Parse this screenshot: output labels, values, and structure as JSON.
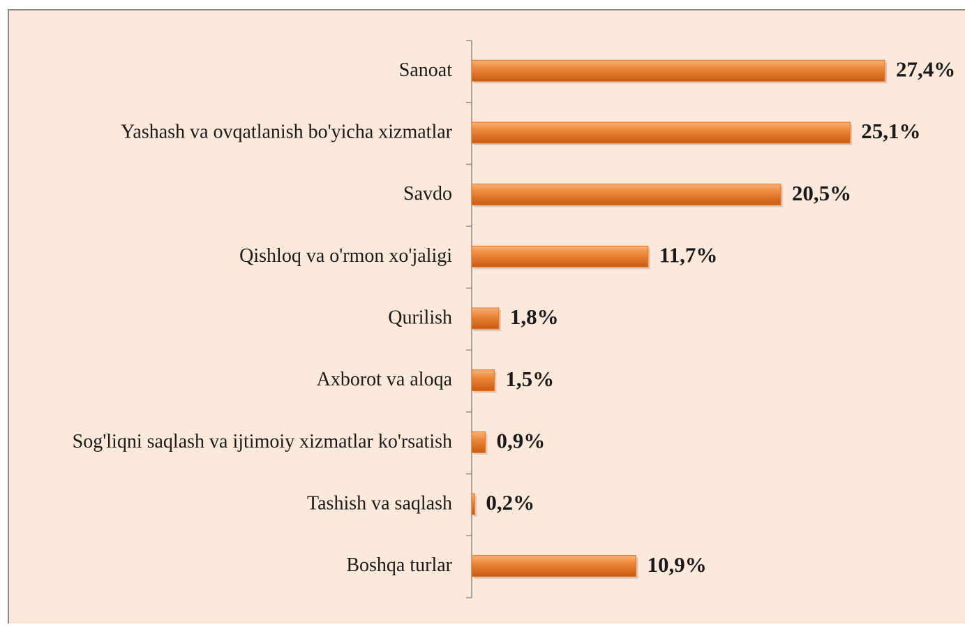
{
  "chart_data": {
    "type": "bar",
    "orientation": "horizontal",
    "categories": [
      "Sanoat",
      "Yashash va ovqatlanish bo'yicha xizmatlar",
      "Savdo",
      "Qishloq va o'rmon xo'jaligi",
      "Qurilish",
      "Axborot va aloqa",
      "Sog'liqni  saqlash va ijtimoiy xizmatlar ko'rsatish",
      "Tashish va saqlash",
      "Boshqa turlar"
    ],
    "values": [
      27.4,
      25.1,
      20.5,
      11.7,
      1.8,
      1.5,
      0.9,
      0.2,
      10.9
    ],
    "value_labels": [
      "27,4%",
      "25,1%",
      "20,5%",
      "11,7%",
      "1,8%",
      "1,5%",
      "0,9%",
      "0,2%",
      "10,9%"
    ],
    "color": "#e8731f"
  }
}
